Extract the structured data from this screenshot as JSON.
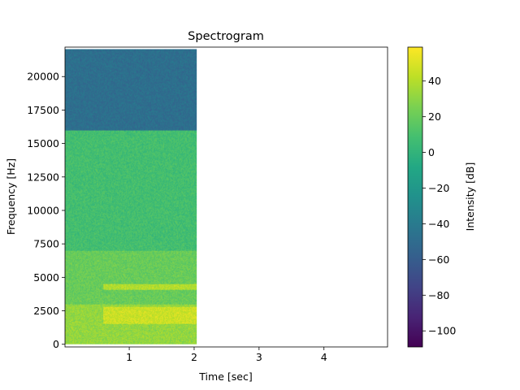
{
  "chart_data": {
    "type": "heatmap",
    "title": "Spectrogram",
    "xlabel": "Time [sec]",
    "ylabel": "Frequency [Hz]",
    "xlim": [
      0.01,
      4.98
    ],
    "ylim": [
      -200,
      22200
    ],
    "x_ticks": [
      1,
      2,
      3,
      4
    ],
    "x_tick_labels": [
      "1",
      "2",
      "3",
      "4"
    ],
    "y_ticks": [
      0,
      2500,
      5000,
      7500,
      10000,
      12500,
      15000,
      17500,
      20000
    ],
    "y_tick_labels": [
      "0",
      "2500",
      "5000",
      "7500",
      "10000",
      "12500",
      "15000",
      "17500",
      "20000"
    ],
    "data_extent": {
      "t_end": 2.04,
      "f_max": 22050
    },
    "colormap": "viridis",
    "colorbar": {
      "label": "Intensity [dB]",
      "vmin": -109,
      "vmax": 59,
      "ticks": [
        -100,
        -80,
        -60,
        -40,
        -20,
        0,
        20,
        40
      ],
      "tick_labels": [
        "−100",
        "−80",
        "−60",
        "−40",
        "−20",
        "0",
        "20",
        "40"
      ]
    },
    "intensity_regions_db": [
      {
        "t": [
          0.01,
          2.04
        ],
        "f": [
          16000,
          22050
        ],
        "level": -48
      },
      {
        "t": [
          0.01,
          2.04
        ],
        "f": [
          7000,
          16000
        ],
        "level": 8
      },
      {
        "t": [
          0.01,
          2.04
        ],
        "f": [
          3000,
          7000
        ],
        "level": 20
      },
      {
        "t": [
          0.01,
          2.04
        ],
        "f": [
          0,
          3000
        ],
        "level": 32
      },
      {
        "t": [
          0.6,
          2.04
        ],
        "f": [
          1500,
          2800
        ],
        "level": 46
      },
      {
        "t": [
          0.6,
          2.04
        ],
        "f": [
          4100,
          4500
        ],
        "level": 40
      }
    ]
  }
}
